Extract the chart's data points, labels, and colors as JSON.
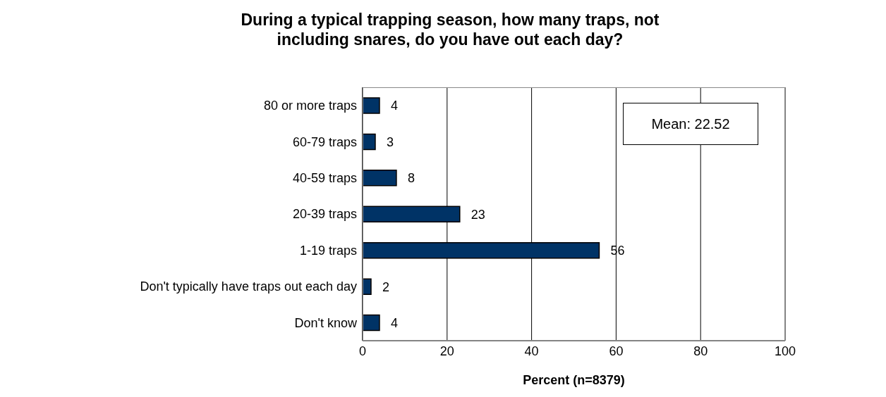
{
  "chart_data": {
    "type": "bar",
    "orientation": "horizontal",
    "title": "During a typical trapping season, how many traps, not including snares, do you have out each day?",
    "xlabel": "Percent (n=8379)",
    "categories": [
      "80 or more traps",
      "60-79 traps",
      "40-59 traps",
      "20-39 traps",
      "1-19 traps",
      "Don't typically have traps out each day",
      "Don't know"
    ],
    "values": [
      4,
      3,
      8,
      23,
      56,
      2,
      4
    ],
    "color": "#003366",
    "data_labels": true,
    "xlim": [
      0,
      100
    ],
    "xticks": [
      0,
      20,
      40,
      60,
      80,
      100
    ],
    "grid": "x",
    "annotations": [
      "Mean: 22.52"
    ]
  }
}
